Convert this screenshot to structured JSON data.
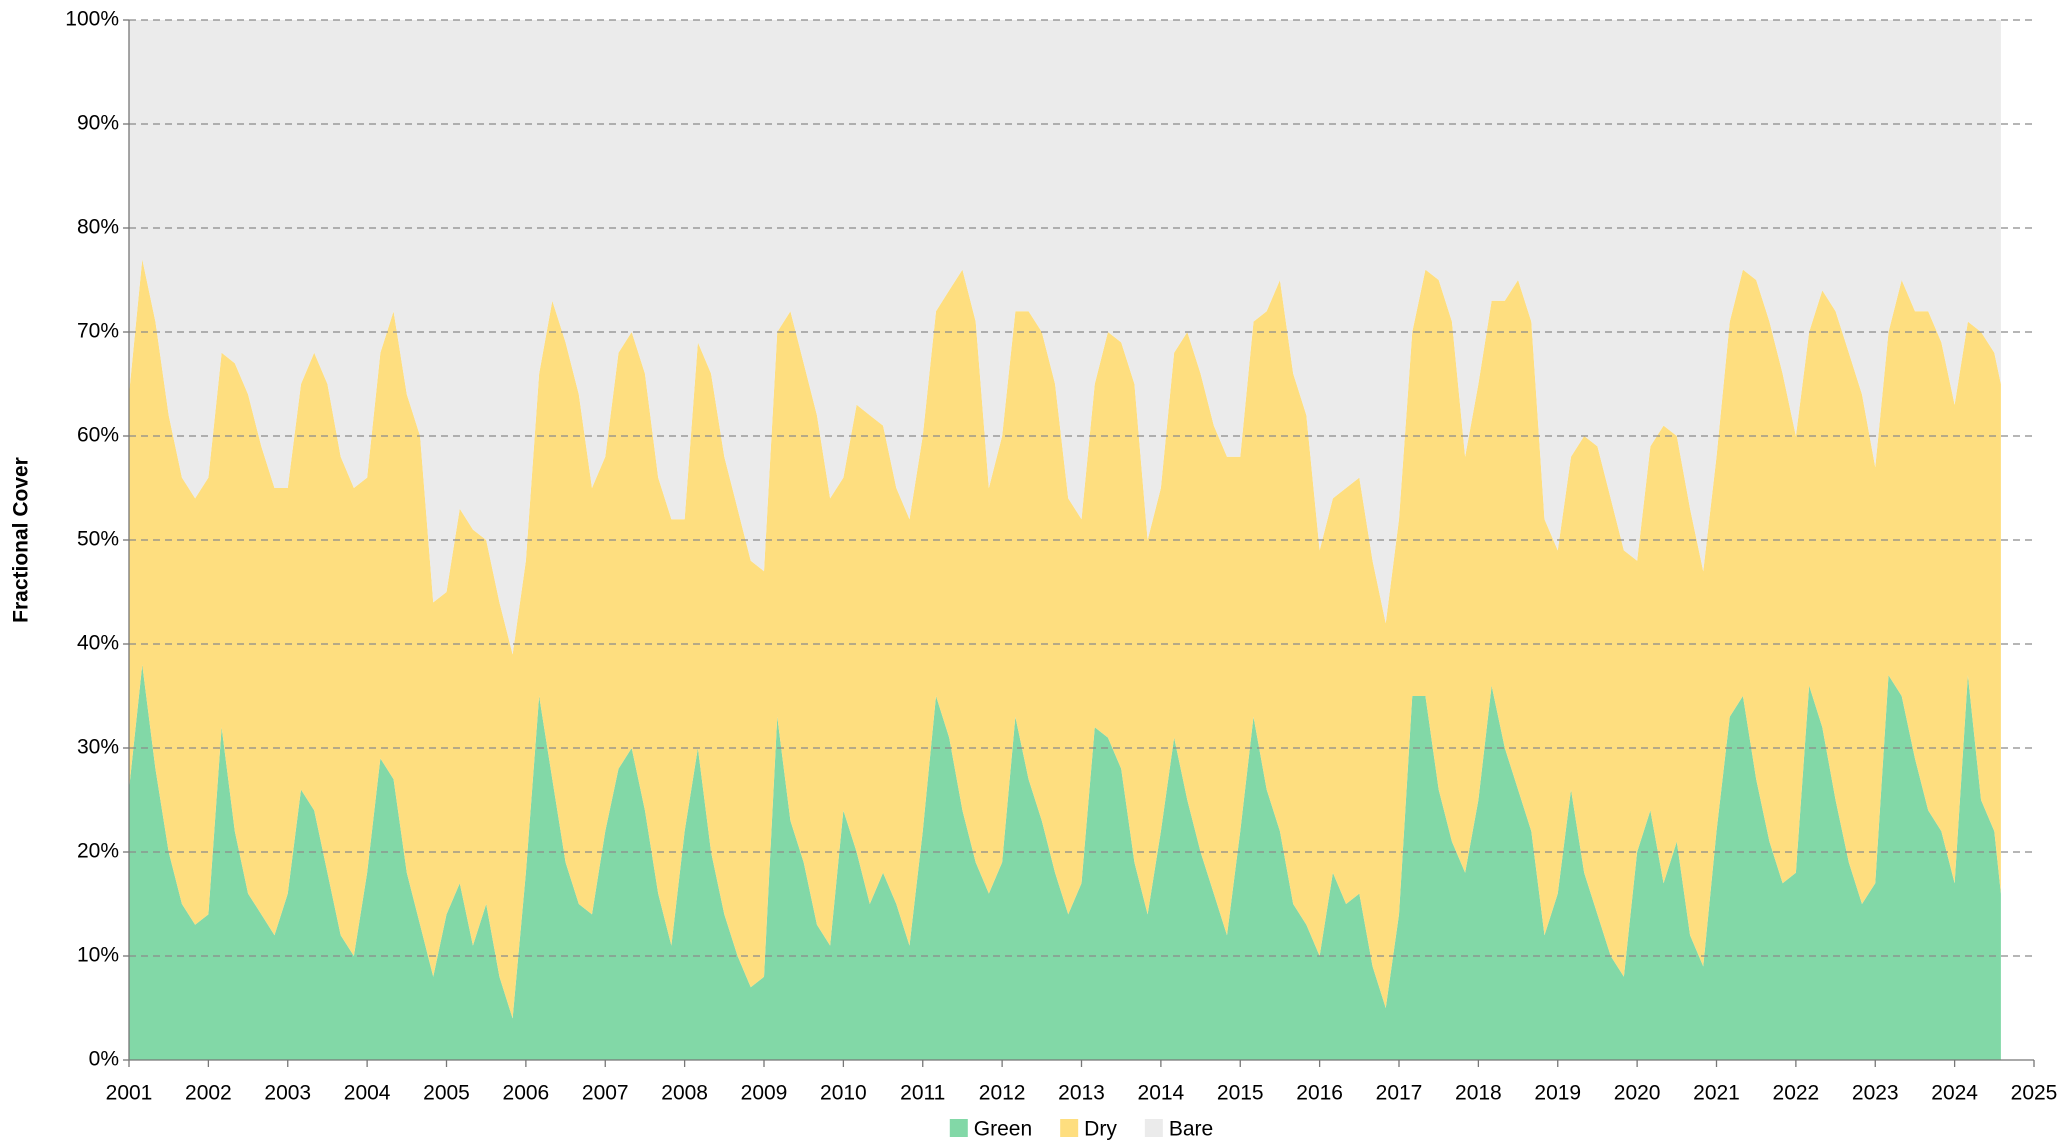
{
  "chart_data": {
    "type": "stacked-area",
    "y_label": "Fractional Cover",
    "x": [
      2001,
      2001.167,
      2001.333,
      2001.5,
      2001.667,
      2001.833,
      2002,
      2002.167,
      2002.333,
      2002.5,
      2002.667,
      2002.833,
      2003,
      2003.167,
      2003.333,
      2003.5,
      2003.667,
      2003.833,
      2004,
      2004.167,
      2004.333,
      2004.5,
      2004.667,
      2004.833,
      2005,
      2005.167,
      2005.333,
      2005.5,
      2005.667,
      2005.833,
      2006,
      2006.167,
      2006.333,
      2006.5,
      2006.667,
      2006.833,
      2007,
      2007.167,
      2007.333,
      2007.5,
      2007.667,
      2007.833,
      2008,
      2008.167,
      2008.333,
      2008.5,
      2008.667,
      2008.833,
      2009,
      2009.167,
      2009.333,
      2009.5,
      2009.667,
      2009.833,
      2010,
      2010.167,
      2010.333,
      2010.5,
      2010.667,
      2010.833,
      2011,
      2011.167,
      2011.333,
      2011.5,
      2011.667,
      2011.833,
      2012,
      2012.167,
      2012.333,
      2012.5,
      2012.667,
      2012.833,
      2013,
      2013.167,
      2013.333,
      2013.5,
      2013.667,
      2013.833,
      2014,
      2014.167,
      2014.333,
      2014.5,
      2014.667,
      2014.833,
      2015,
      2015.167,
      2015.333,
      2015.5,
      2015.667,
      2015.833,
      2016,
      2016.167,
      2016.333,
      2016.5,
      2016.667,
      2016.833,
      2017,
      2017.167,
      2017.333,
      2017.5,
      2017.667,
      2017.833,
      2018,
      2018.167,
      2018.333,
      2018.5,
      2018.667,
      2018.833,
      2019,
      2019.167,
      2019.333,
      2019.5,
      2019.667,
      2019.833,
      2020,
      2020.167,
      2020.333,
      2020.5,
      2020.667,
      2020.833,
      2021,
      2021.167,
      2021.333,
      2021.5,
      2021.667,
      2021.833,
      2022,
      2022.167,
      2022.333,
      2022.5,
      2022.667,
      2022.833,
      2023,
      2023.167,
      2023.333,
      2023.5,
      2023.667,
      2023.833,
      2024,
      2024.167,
      2024.333,
      2024.5,
      2024.583
    ],
    "series": [
      {
        "name": "Green",
        "color": "#82d8a7",
        "values": [
          26,
          38,
          28,
          20,
          15,
          13,
          14,
          32,
          22,
          16,
          14,
          12,
          16,
          26,
          24,
          18,
          12,
          10,
          18,
          29,
          27,
          18,
          13,
          8,
          14,
          17,
          11,
          15,
          8,
          4,
          18,
          35,
          27,
          19,
          15,
          14,
          22,
          28,
          30,
          24,
          16,
          11,
          22,
          30,
          20,
          14,
          10,
          7,
          8,
          33,
          23,
          19,
          13,
          11,
          24,
          20,
          15,
          18,
          15,
          11,
          22,
          35,
          31,
          24,
          19,
          16,
          19,
          33,
          27,
          23,
          18,
          14,
          17,
          32,
          31,
          28,
          19,
          14,
          22,
          31,
          25,
          20,
          16,
          12,
          22,
          33,
          26,
          22,
          15,
          13,
          10,
          18,
          15,
          16,
          9,
          5,
          14,
          35,
          35,
          26,
          21,
          18,
          25,
          36,
          30,
          26,
          22,
          12,
          16,
          26,
          18,
          14,
          10,
          8,
          20,
          24,
          17,
          21,
          12,
          9,
          22,
          33,
          35,
          27,
          21,
          17,
          18,
          36,
          32,
          25,
          19,
          15,
          17,
          37,
          35,
          29,
          24,
          22,
          17,
          37,
          25,
          22,
          16
        ]
      },
      {
        "name": "Dry",
        "color": "#fede7f",
        "values": [
          38,
          39,
          43,
          42,
          41,
          41,
          42,
          36,
          45,
          48,
          45,
          43,
          39,
          39,
          44,
          47,
          46,
          45,
          38,
          39,
          45,
          46,
          47,
          36,
          31,
          36,
          40,
          35,
          36,
          35,
          30,
          31,
          46,
          50,
          49,
          41,
          36,
          40,
          40,
          42,
          40,
          41,
          30,
          39,
          46,
          44,
          43,
          41,
          39,
          37,
          49,
          48,
          49,
          43,
          32,
          43,
          47,
          43,
          40,
          41,
          38,
          37,
          43,
          52,
          52,
          39,
          41,
          39,
          45,
          47,
          47,
          40,
          35,
          33,
          39,
          41,
          46,
          36,
          33,
          37,
          45,
          46,
          45,
          46,
          36,
          38,
          46,
          53,
          51,
          49,
          39,
          36,
          40,
          40,
          39,
          37,
          38,
          35,
          41,
          49,
          50,
          40,
          40,
          37,
          43,
          49,
          49,
          40,
          33,
          32,
          42,
          45,
          44,
          41,
          28,
          35,
          44,
          39,
          41,
          38,
          36,
          38,
          41,
          48,
          50,
          49,
          42,
          34,
          42,
          47,
          49,
          49,
          40,
          33,
          40,
          43,
          48,
          47,
          46,
          34,
          45,
          46,
          49
        ]
      },
      {
        "name": "Bare",
        "color": "#ebebeb",
        "values": [
          36,
          23,
          29,
          38,
          44,
          46,
          44,
          32,
          33,
          36,
          41,
          45,
          45,
          35,
          32,
          35,
          42,
          45,
          44,
          32,
          28,
          36,
          40,
          56,
          55,
          47,
          49,
          50,
          56,
          61,
          52,
          34,
          27,
          31,
          36,
          45,
          42,
          32,
          30,
          34,
          44,
          48,
          48,
          31,
          34,
          42,
          47,
          52,
          53,
          30,
          28,
          33,
          38,
          46,
          44,
          37,
          38,
          39,
          45,
          48,
          40,
          28,
          26,
          24,
          29,
          45,
          40,
          28,
          28,
          30,
          35,
          46,
          48,
          35,
          30,
          31,
          35,
          50,
          45,
          32,
          30,
          34,
          39,
          42,
          42,
          29,
          28,
          25,
          34,
          38,
          51,
          46,
          45,
          44,
          52,
          58,
          48,
          30,
          24,
          25,
          29,
          42,
          35,
          27,
          27,
          25,
          29,
          48,
          51,
          42,
          40,
          41,
          46,
          51,
          52,
          41,
          39,
          40,
          47,
          53,
          42,
          29,
          24,
          25,
          29,
          34,
          40,
          30,
          26,
          28,
          32,
          36,
          43,
          30,
          25,
          28,
          28,
          31,
          37,
          29,
          30,
          32,
          35
        ]
      }
    ],
    "xlim": [
      2001,
      2025
    ],
    "xticks": [
      2001,
      2002,
      2003,
      2004,
      2005,
      2006,
      2007,
      2008,
      2009,
      2010,
      2011,
      2012,
      2013,
      2014,
      2015,
      2016,
      2017,
      2018,
      2019,
      2020,
      2021,
      2022,
      2023,
      2024,
      2025
    ],
    "ylim": [
      0,
      100
    ],
    "yticks": [
      {
        "value": 0,
        "label": "0%"
      },
      {
        "value": 10,
        "label": "10%"
      },
      {
        "value": 20,
        "label": "20%"
      },
      {
        "value": 30,
        "label": "30%"
      },
      {
        "value": 40,
        "label": "40%"
      },
      {
        "value": 50,
        "label": "50%"
      },
      {
        "value": 60,
        "label": "60%"
      },
      {
        "value": 70,
        "label": "70%"
      },
      {
        "value": 80,
        "label": "80%"
      },
      {
        "value": 90,
        "label": "90%"
      },
      {
        "value": 100,
        "label": "100%"
      }
    ],
    "grid": true,
    "legend": "bottom"
  }
}
